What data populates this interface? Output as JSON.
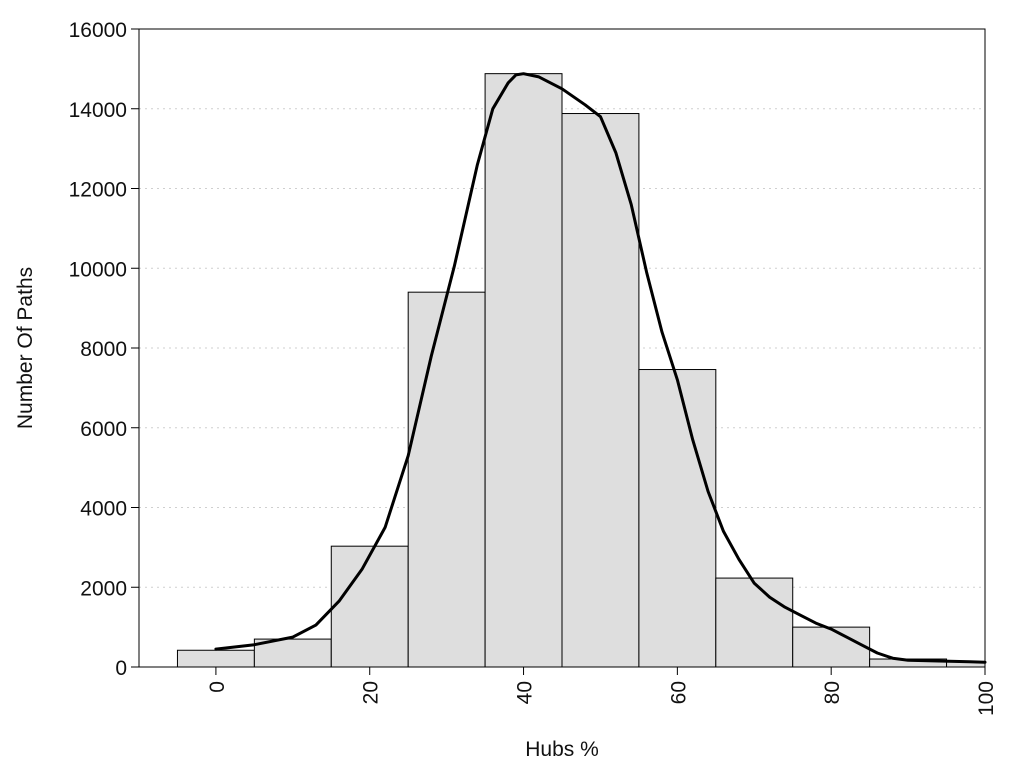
{
  "chart_data": {
    "type": "bar",
    "title": "",
    "xlabel": "Hubs %",
    "ylabel": "Number Of Paths",
    "xlim": [
      -10,
      100
    ],
    "ylim": [
      0,
      16000
    ],
    "x_ticks": [
      0,
      20,
      40,
      60,
      80,
      100
    ],
    "y_ticks": [
      0,
      2000,
      4000,
      6000,
      8000,
      10000,
      12000,
      14000,
      16000
    ],
    "grid": "horizontal-dotted",
    "bin_width": 10,
    "bin_centers": [
      0,
      10,
      20,
      30,
      40,
      50,
      60,
      70,
      80,
      90,
      100
    ],
    "values": [
      420,
      700,
      3030,
      9400,
      14880,
      13880,
      7460,
      2230,
      1000,
      200,
      130
    ],
    "density_curve": {
      "x": [
        0,
        5,
        10,
        13,
        16,
        19,
        22,
        25,
        28,
        31,
        34,
        36,
        38,
        39,
        40,
        42,
        45,
        48,
        50,
        52,
        54,
        56,
        58,
        60,
        62,
        64,
        66,
        68,
        70,
        72,
        74,
        76,
        78,
        80,
        82,
        84,
        86,
        88,
        90,
        92,
        94,
        96,
        98,
        100
      ],
      "y": [
        450,
        560,
        750,
        1050,
        1650,
        2450,
        3500,
        5300,
        7800,
        10050,
        12600,
        14000,
        14650,
        14850,
        14880,
        14800,
        14500,
        14100,
        13800,
        12900,
        11600,
        9900,
        8400,
        7200,
        5700,
        4400,
        3400,
        2700,
        2100,
        1750,
        1500,
        1300,
        1100,
        950,
        750,
        550,
        350,
        220,
        170,
        160,
        150,
        140,
        130,
        120
      ]
    },
    "colors": {
      "bar_fill": "#dedede",
      "bar_stroke": "#000000",
      "line": "#000000"
    }
  }
}
